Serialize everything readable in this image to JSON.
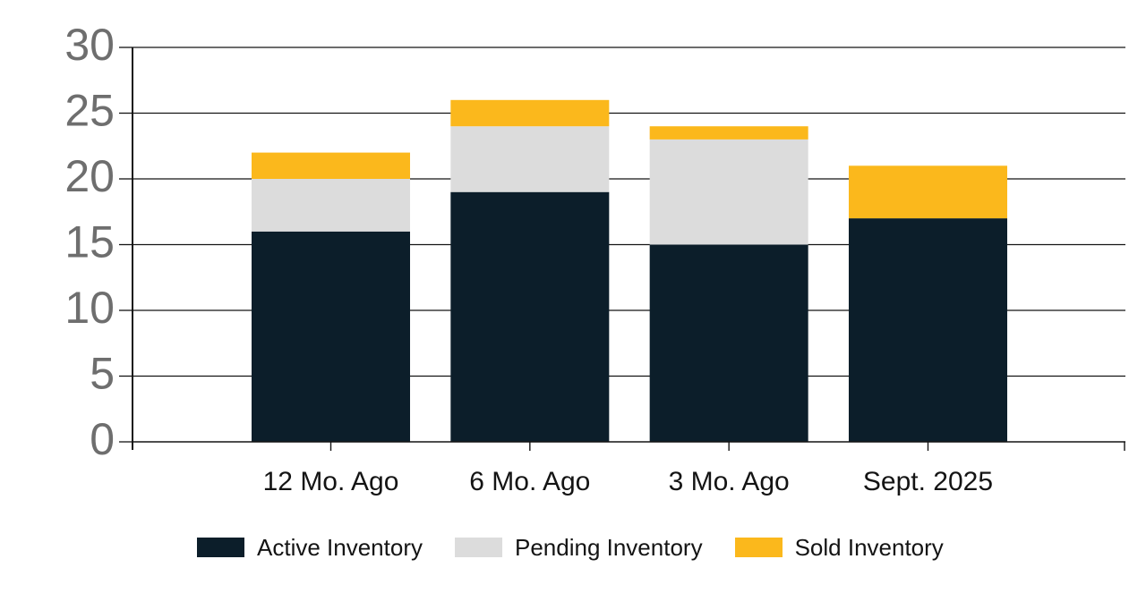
{
  "chart_data": {
    "type": "bar",
    "stacked": true,
    "categories": [
      "12 Mo. Ago",
      "6 Mo. Ago",
      "3 Mo. Ago",
      "Sept. 2025"
    ],
    "series": [
      {
        "name": "Active Inventory",
        "color": "#0c1e2a",
        "values": [
          16,
          19,
          15,
          17
        ]
      },
      {
        "name": "Pending Inventory",
        "color": "#dcdcdc",
        "values": [
          4,
          5,
          8,
          0
        ]
      },
      {
        "name": "Sold Inventory",
        "color": "#fbb81c",
        "values": [
          2,
          2,
          1,
          4
        ]
      }
    ],
    "totals": [
      22,
      26,
      24,
      21
    ],
    "xlabel": "",
    "ylabel": "",
    "ylim": [
      0,
      30
    ],
    "yticks": [
      0,
      5,
      10,
      15,
      20,
      25,
      30
    ],
    "grid": true,
    "legend_position": "bottom"
  },
  "colors": {
    "background": "#ffffff",
    "axis_line": "#141414",
    "grid_line": "#141414",
    "y_tick_label": "#6e6e6e",
    "x_tick_label": "#141414",
    "legend_text": "#141414"
  }
}
